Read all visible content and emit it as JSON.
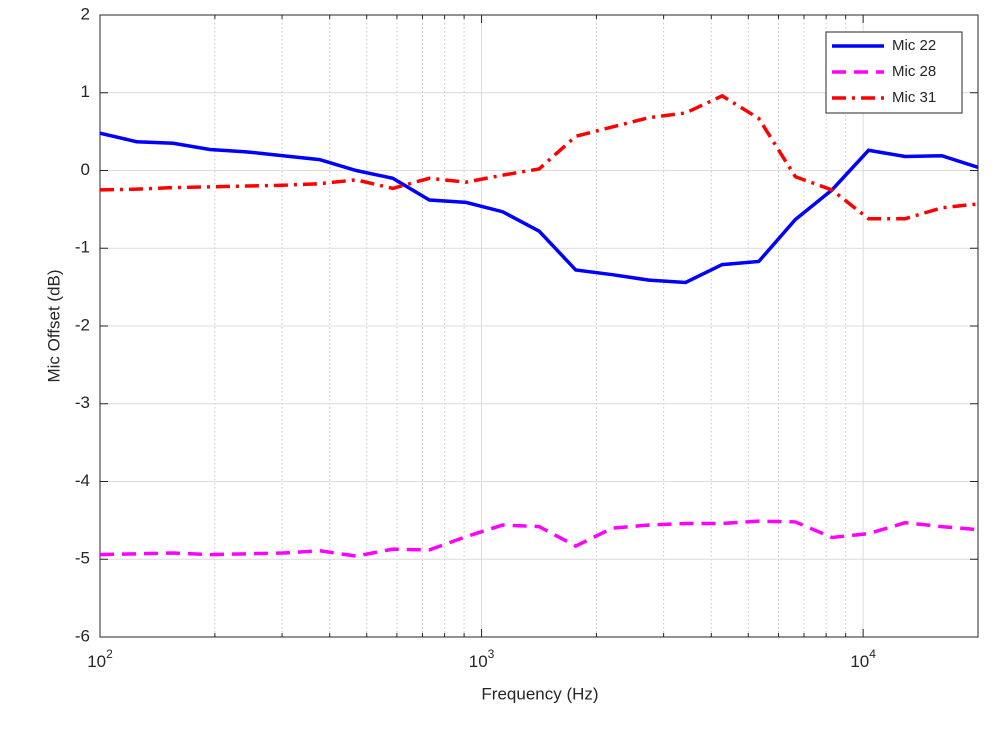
{
  "chart_data": {
    "type": "line",
    "xlabel": "Frequency (Hz)",
    "ylabel": "Mic Offset (dB)",
    "x": [
      100,
      124.7,
      155.5,
      194.0,
      241.9,
      301.7,
      376.2,
      469.2,
      585.2,
      729.8,
      910.2,
      1135.1,
      1415.7,
      1765.5,
      2201.9,
      2746.1,
      3424.8,
      4271.2,
      5326.8,
      6643.4,
      8285.3,
      10333,
      12887,
      16072,
      20000
    ],
    "series": [
      {
        "name": "Mic 22",
        "color": "#0000ff",
        "dash": "solid",
        "values": [
          0.48,
          0.37,
          0.35,
          0.27,
          0.24,
          0.19,
          0.14,
          0.0,
          -0.1,
          -0.38,
          -0.41,
          -0.53,
          -0.78,
          -1.28,
          -1.34,
          -1.41,
          -1.44,
          -1.21,
          -1.17,
          -0.63,
          -0.25,
          0.26,
          0.18,
          0.19,
          0.04
        ]
      },
      {
        "name": "Mic 28",
        "color": "#ff00ff",
        "dash": "dashed",
        "values": [
          -4.94,
          -4.93,
          -4.92,
          -4.94,
          -4.93,
          -4.92,
          -4.89,
          -4.96,
          -4.87,
          -4.88,
          -4.71,
          -4.56,
          -4.58,
          -4.83,
          -4.6,
          -4.56,
          -4.54,
          -4.54,
          -4.51,
          -4.52,
          -4.72,
          -4.67,
          -4.53,
          -4.58,
          -4.62
        ]
      },
      {
        "name": "Mic 31",
        "color": "#ff0000",
        "dash": "dashdot",
        "values": [
          -0.25,
          -0.24,
          -0.22,
          -0.21,
          -0.2,
          -0.19,
          -0.17,
          -0.12,
          -0.23,
          -0.1,
          -0.15,
          -0.06,
          0.02,
          0.44,
          0.56,
          0.68,
          0.74,
          0.96,
          0.67,
          -0.08,
          -0.25,
          -0.62,
          -0.62,
          -0.48,
          -0.43
        ]
      }
    ],
    "xscale": "log",
    "xlim": [
      100,
      20000
    ],
    "xticks": [
      {
        "value": 100,
        "label": "10^2"
      },
      {
        "value": 1000,
        "label": "10^3"
      },
      {
        "value": 10000,
        "label": "10^4"
      }
    ],
    "ylim": [
      -6,
      2
    ],
    "yticks": [
      -6,
      -5,
      -4,
      -3,
      -2,
      -1,
      0,
      1,
      2
    ],
    "grid": true,
    "minor_grid": true,
    "legend": "northeast"
  }
}
